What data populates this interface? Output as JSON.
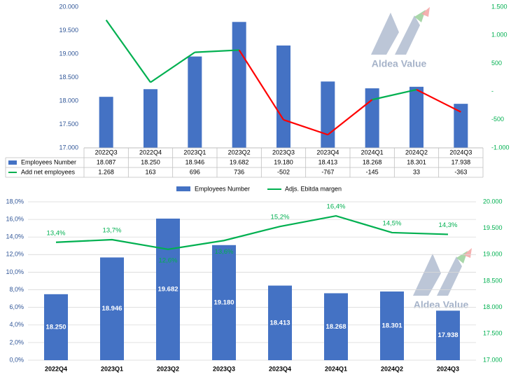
{
  "colors": {
    "bar": "#4472C4",
    "employees_line": "#00B050",
    "employees_line_down": "#FF0000",
    "ebitda_line": "#00B050",
    "left_axis_text": "#2F5597",
    "right_axis_text": "#00B050",
    "category_text": "#000000",
    "grid": "#D9D9D9",
    "logo_gray": "#A6B3C9",
    "logo_green": "#9FD3A0",
    "logo_red": "#F4A8A8"
  },
  "watermark": {
    "text": "Aldea Value"
  },
  "chart_data": [
    {
      "type": "bar",
      "categories": [
        "2022Q3",
        "2022Q4",
        "2023Q1",
        "2023Q2",
        "2023Q3",
        "2023Q4",
        "2024Q1",
        "2024Q2",
        "2024Q3"
      ],
      "series": [
        {
          "name": "Employees Number",
          "type": "bar",
          "axis": "left",
          "values": [
            18087,
            18250,
            18946,
            19682,
            19180,
            18413,
            18268,
            18301,
            17938
          ],
          "labels": [
            "18.087",
            "18.250",
            "18.946",
            "19.682",
            "19.180",
            "18.413",
            "18.268",
            "18.301",
            "17.938"
          ]
        },
        {
          "name": "Add net employees",
          "type": "line",
          "axis": "right",
          "values": [
            1268,
            163,
            696,
            736,
            -502,
            -767,
            -145,
            33,
            -363
          ],
          "labels": [
            "1.268",
            "163",
            "696",
            "736",
            "-502",
            "-767",
            "-145",
            "33",
            "-363"
          ]
        }
      ],
      "yleft": {
        "ylim": [
          17000,
          20000
        ],
        "ticks": [
          "20.000",
          "19.500",
          "19.000",
          "18.500",
          "18.000",
          "17.500",
          "17.000"
        ]
      },
      "yright": {
        "ylim": [
          -1000,
          1500
        ],
        "ticks": [
          "1.500",
          "1.000",
          "500",
          "-",
          "-500",
          "-1.000"
        ]
      },
      "data_table": true
    },
    {
      "type": "bar",
      "categories": [
        "2022Q4",
        "2023Q1",
        "2023Q2",
        "2023Q3",
        "2023Q4",
        "2024Q1",
        "2024Q2",
        "2024Q3"
      ],
      "series": [
        {
          "name": "Employees Number",
          "type": "bar",
          "axis": "right",
          "values": [
            18250,
            18946,
            19682,
            19180,
            18413,
            18268,
            18301,
            17938
          ],
          "labels": [
            "18.250",
            "18.946",
            "19.682",
            "19.180",
            "18.413",
            "18.268",
            "18.301",
            "17.938"
          ]
        },
        {
          "name": "Adjs. Ebitda margen",
          "type": "line",
          "axis": "left",
          "values": [
            13.4,
            13.7,
            12.6,
            13.6,
            15.2,
            16.4,
            14.5,
            14.3
          ],
          "labels": [
            "13,4%",
            "13,7%",
            "12,6%",
            "13,6%",
            "15,2%",
            "16,4%",
            "14,5%",
            "14,3%"
          ]
        }
      ],
      "yleft": {
        "ylim": [
          0,
          18
        ],
        "ticks": [
          "18,0%",
          "16,0%",
          "14,0%",
          "12,0%",
          "10,0%",
          "8,0%",
          "6,0%",
          "4,0%",
          "2,0%",
          "0,0%"
        ]
      },
      "yright": {
        "ylim": [
          17000,
          20000
        ],
        "ticks": [
          "20.000",
          "19.500",
          "19.000",
          "18.500",
          "18.000",
          "17.500",
          "17.000"
        ]
      },
      "legend_position": "top"
    }
  ]
}
